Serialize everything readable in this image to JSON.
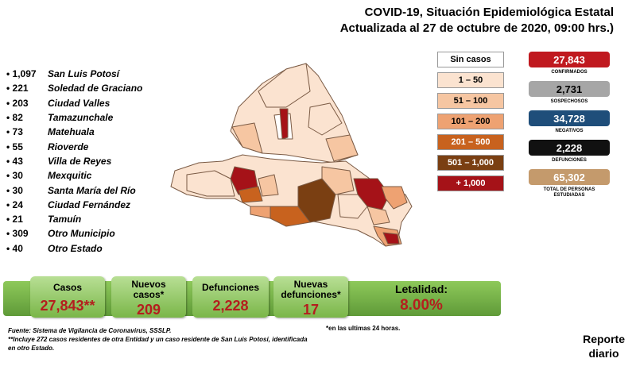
{
  "header": {
    "line1": "COVID-19, Situación Epidemiológica Estatal",
    "line2": "Actualizada al 27 de octubre de 2020, 09:00 hrs.)"
  },
  "municipalities": [
    {
      "count": "1,097",
      "name": "San Luis Potosí"
    },
    {
      "count": "221",
      "name": "Soledad de Graciano"
    },
    {
      "count": "203",
      "name": "Ciudad Valles"
    },
    {
      "count": "82",
      "name": "Tamazunchale"
    },
    {
      "count": "73",
      "name": "Matehuala"
    },
    {
      "count": "55",
      "name": "Rioverde"
    },
    {
      "count": "43",
      "name": "Villa de Reyes"
    },
    {
      "count": "30",
      "name": "Mexquitic"
    },
    {
      "count": "30",
      "name": "Santa María del Río"
    },
    {
      "count": "24",
      "name": "Ciudad Fernández"
    },
    {
      "count": "21",
      "name": "Tamuín"
    },
    {
      "count": "309",
      "name": "Otro Municipio"
    },
    {
      "count": "40",
      "name": "Otro Estado"
    }
  ],
  "legend": [
    {
      "label": "Sin casos",
      "color": "#ffffff",
      "text_color": "#000000"
    },
    {
      "label": "1 – 50",
      "color": "#fbe3d0",
      "text_color": "#000000"
    },
    {
      "label": "51 – 100",
      "color": "#f6c6a2",
      "text_color": "#000000"
    },
    {
      "label": "101 – 200",
      "color": "#eea272",
      "text_color": "#000000"
    },
    {
      "label": "201 – 500",
      "color": "#c8621e",
      "text_color": "#ffffff"
    },
    {
      "label": "501 – 1,000",
      "color": "#7a3f12",
      "text_color": "#ffffff"
    },
    {
      "label": "+ 1,000",
      "color": "#a51218",
      "text_color": "#ffffff"
    }
  ],
  "stats": [
    {
      "value": "27,843",
      "label": "CONFIRMADOS",
      "color": "#c0191f"
    },
    {
      "value": "2,731",
      "label": "SOSPECHOSOS",
      "color": "#a6a6a6"
    },
    {
      "value": "34,728",
      "label": "NEGATIVOS",
      "color": "#1f4e7a"
    },
    {
      "value": "2,228",
      "label": "DEFUNCIONES",
      "color": "#111111"
    },
    {
      "value": "65,302",
      "label": "TOTAL DE PERSONAS ESTUDIADAS",
      "color": "#c49a6c"
    }
  ],
  "banner": {
    "cases_label": "Casos",
    "cases_value": "27,843**",
    "new_cases_label_1": "Nuevos",
    "new_cases_label_2": "casos*",
    "new_cases_value": "209",
    "deaths_label": "Defunciones",
    "deaths_value": "2,228",
    "new_deaths_label_1": "Nuevas",
    "new_deaths_label_2": "defunciones*",
    "new_deaths_value": "17",
    "lethality_label": "Letalidad:",
    "lethality_value": "8.00%"
  },
  "footer": {
    "note_24h": "*en las ultimas 24 horas.",
    "source": "Fuente: Sistema de Vigilancia de Coronavirus, SSSLP.",
    "note_line1": "**Incluye 272 casos residentes de otra Entidad y un caso residente de San Luis Potosí, identificada",
    "note_line2": "en otro Estado.",
    "report_line1": "Reporte",
    "report_line2": "diario"
  }
}
